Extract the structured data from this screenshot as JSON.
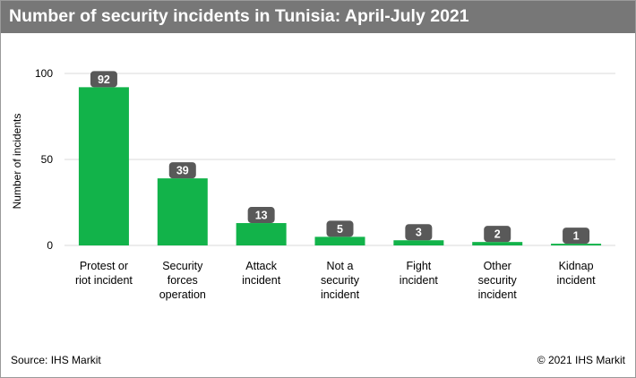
{
  "header": {
    "title": "Number of security incidents in Tunisia: April-July 2021"
  },
  "footer": {
    "source": "Source: IHS Markit",
    "copyright": "© 2021 IHS Markit"
  },
  "colors": {
    "bar": "#12b34a",
    "title_bar": "#777777",
    "label_badge": "#595959",
    "gridline": "#d9d9d9"
  },
  "chart_data": {
    "type": "bar",
    "title": "Number of security incidents in Tunisia: April-July 2021",
    "xlabel": "",
    "ylabel": "Number of incidents",
    "ylim": [
      0,
      100
    ],
    "yticks": [
      0,
      50,
      100
    ],
    "grid": true,
    "categories": [
      [
        "Protest or",
        "riot incident"
      ],
      [
        "Security",
        "forces",
        "operation"
      ],
      [
        "Attack",
        "incident"
      ],
      [
        "Not a",
        "security",
        "incident"
      ],
      [
        "Fight",
        "incident"
      ],
      [
        "Other",
        "security",
        "incident"
      ],
      [
        "Kidnap",
        "incident"
      ]
    ],
    "values": [
      92,
      39,
      13,
      5,
      3,
      2,
      1
    ]
  }
}
